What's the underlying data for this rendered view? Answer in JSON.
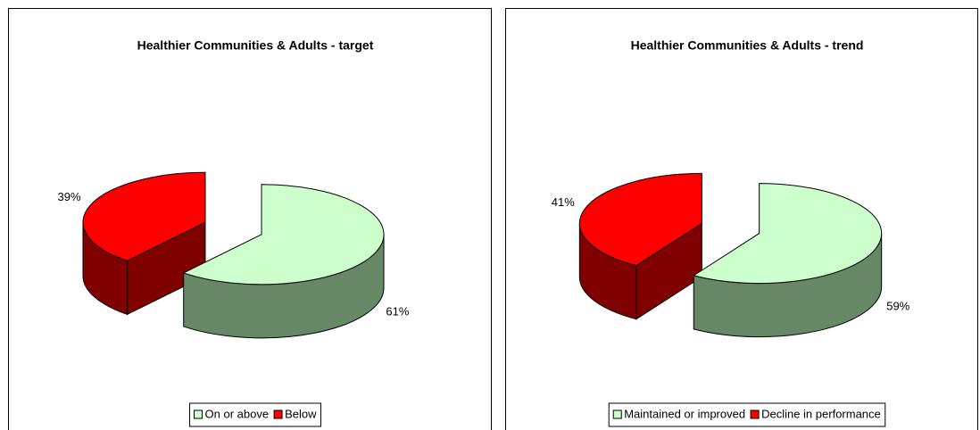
{
  "chart_data": [
    {
      "type": "pie",
      "title": "Healthier Communities & Adults - target",
      "categories": [
        "On or above",
        "Below"
      ],
      "values": [
        61,
        39
      ],
      "value_labels": [
        "61%",
        "39%"
      ],
      "colors": [
        "#ccffcc",
        "#ff0000"
      ],
      "legend": "bottom"
    },
    {
      "type": "pie",
      "title": "Healthier Communities & Adults - trend",
      "categories": [
        "Maintained or improved",
        "Decline in performance"
      ],
      "values": [
        59,
        41
      ],
      "value_labels": [
        "59%",
        "41%"
      ],
      "colors": [
        "#ccffcc",
        "#ff0000"
      ],
      "legend": "bottom"
    }
  ]
}
